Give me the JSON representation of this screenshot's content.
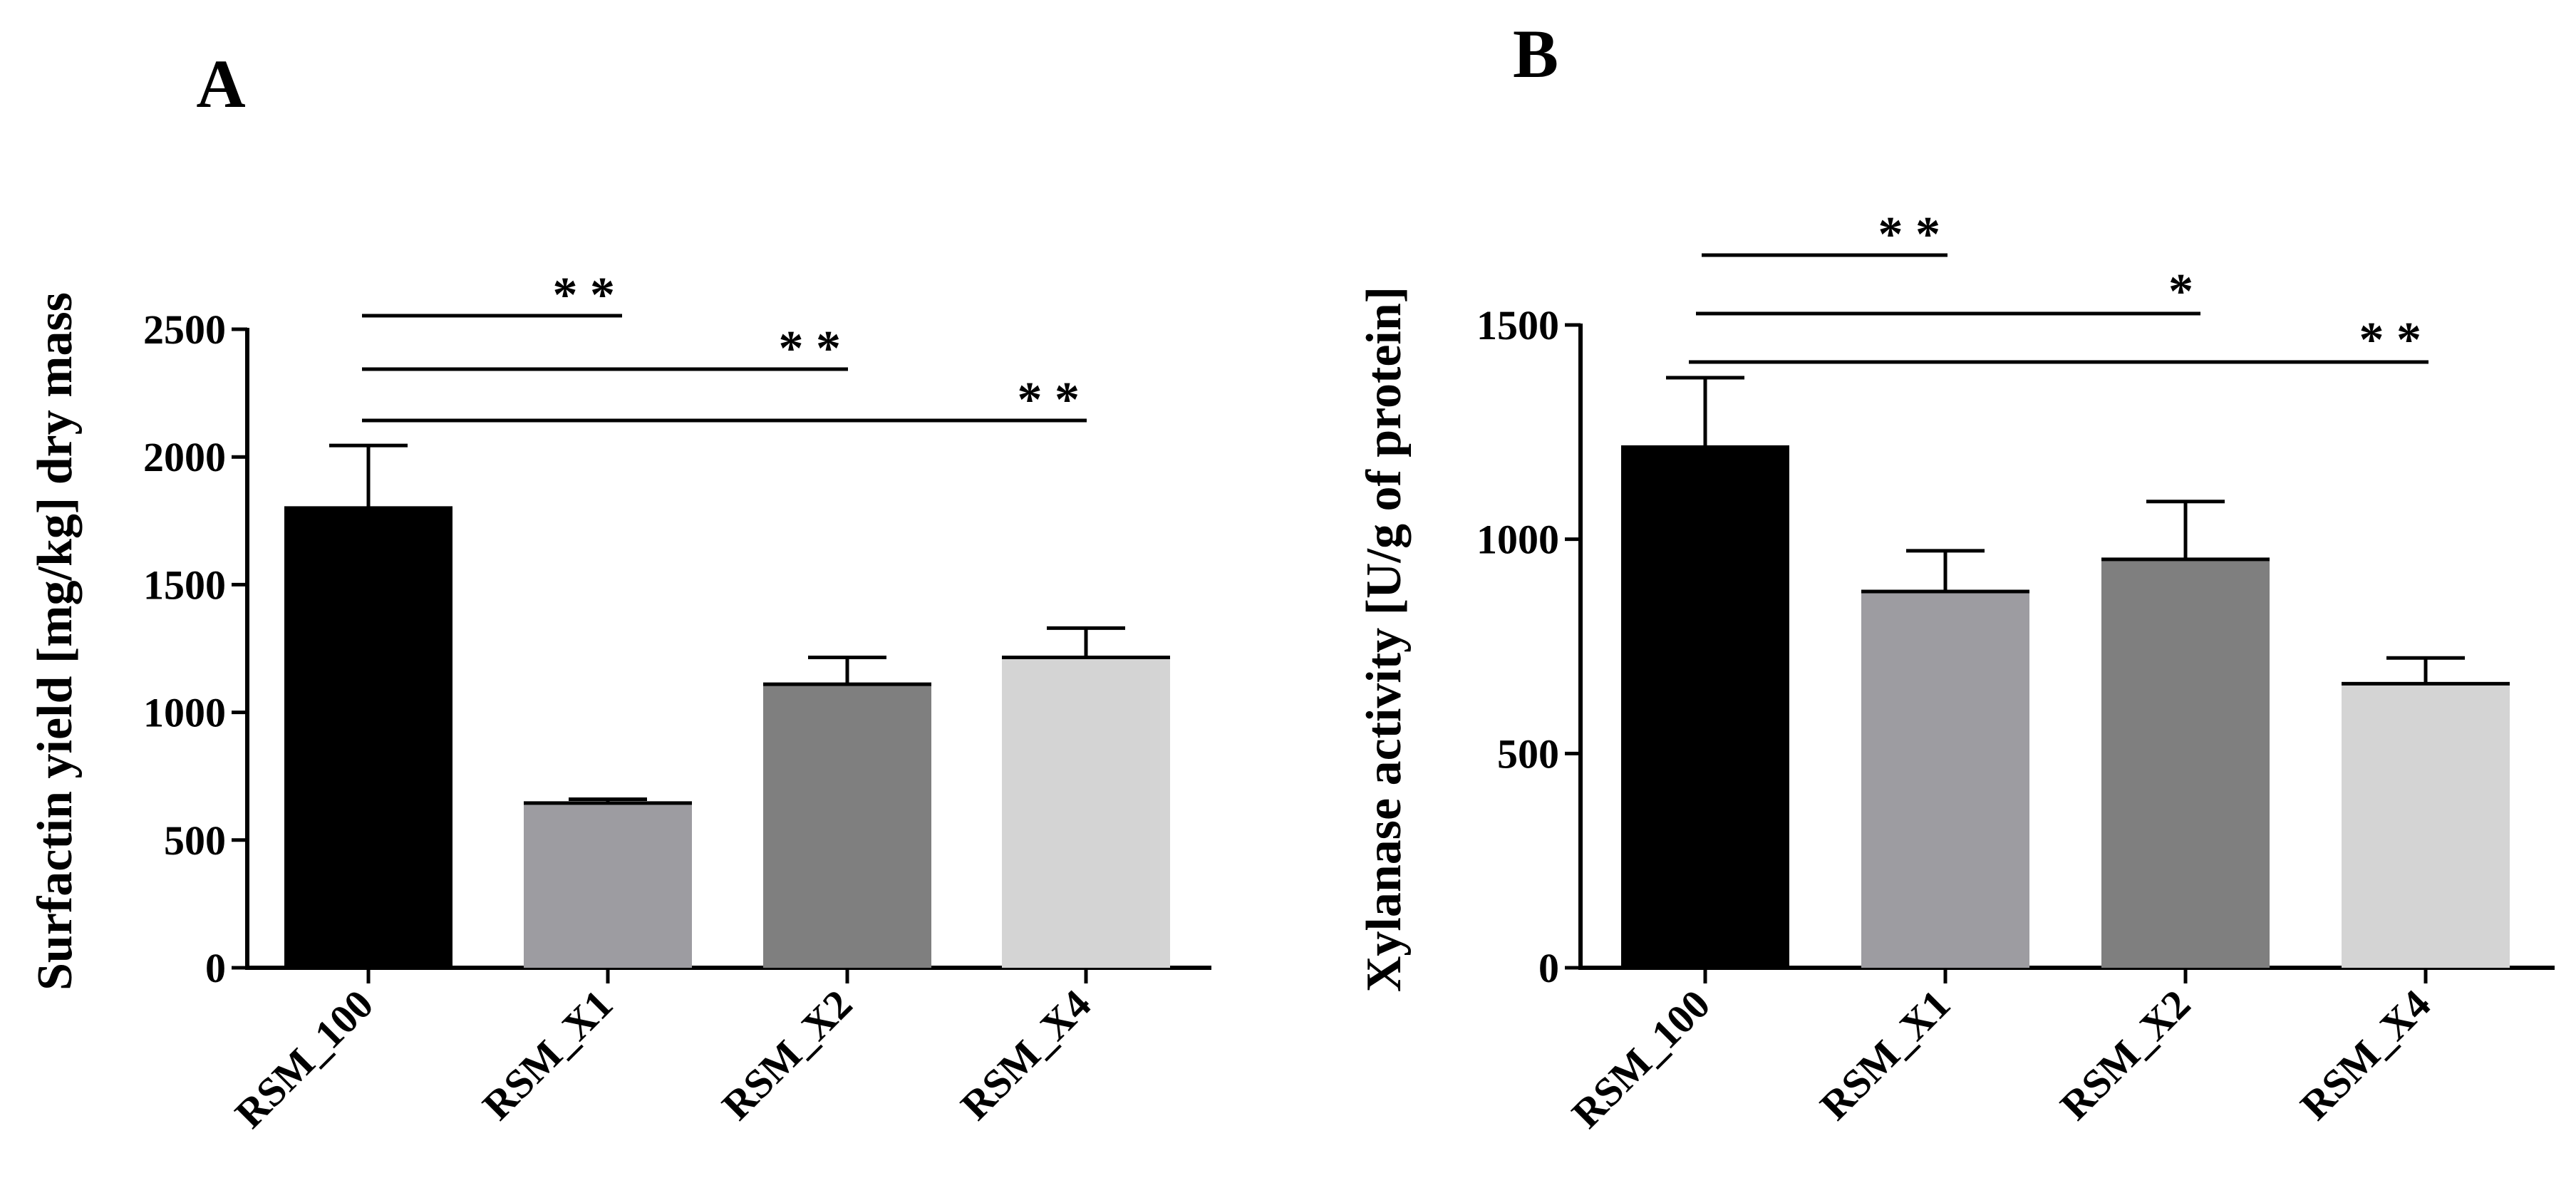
{
  "chart_data": [
    {
      "panel_label": "A",
      "type": "bar",
      "ylabel": "Surfactin yield [mg/kg] dry mass",
      "xlabel": "",
      "ylim": [
        0,
        2500
      ],
      "yticks": [
        0,
        500,
        1000,
        1500,
        2000,
        2500
      ],
      "categories": [
        "RSM_100",
        "RSM_X1",
        "RSM_X2",
        "RSM_X4"
      ],
      "values": [
        1800,
        645,
        1110,
        1215
      ],
      "errors": [
        245,
        15,
        105,
        115
      ],
      "colors": [
        "#000000",
        "#9d9ca1",
        "#7f7f7f",
        "#d4d4d4"
      ],
      "significance": [
        {
          "from": 0,
          "to": 1,
          "label": "**"
        },
        {
          "from": 0,
          "to": 2,
          "label": "**"
        },
        {
          "from": 0,
          "to": 3,
          "label": "**"
        }
      ]
    },
    {
      "panel_label": "B",
      "type": "bar",
      "ylabel": "Xylanase activity [U/g of protein]",
      "xlabel": "",
      "ylim": [
        0,
        1500
      ],
      "yticks": [
        0,
        500,
        1000,
        1500
      ],
      "categories": [
        "RSM_100",
        "RSM_X1",
        "RSM_X2",
        "RSM_X4"
      ],
      "values": [
        1215,
        878,
        953,
        663
      ],
      "errors": [
        162,
        95,
        135,
        60
      ],
      "colors": [
        "#000000",
        "#9d9ca1",
        "#7f7f7f",
        "#d4d4d4"
      ],
      "significance": [
        {
          "from": 0,
          "to": 1,
          "label": "**"
        },
        {
          "from": 0,
          "to": 2,
          "label": "*"
        },
        {
          "from": 0,
          "to": 3,
          "label": "**"
        }
      ]
    }
  ]
}
